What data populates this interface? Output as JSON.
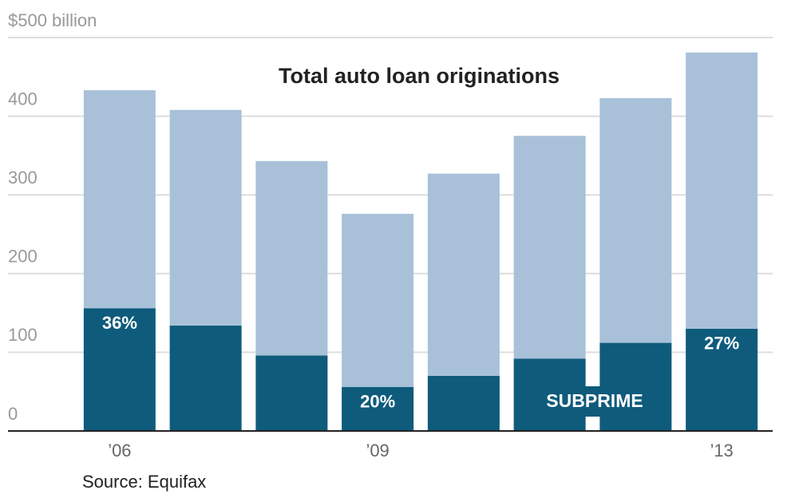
{
  "chart_data": {
    "type": "stacked-bar",
    "title": "Total auto loan originations",
    "source": "Source: Equifax",
    "categories": [
      "’06",
      null,
      null,
      "’09",
      null,
      null,
      null,
      "’13"
    ],
    "series": [
      {
        "name": "SUBPRIME",
        "color": "#0e5b7c",
        "values": [
          156,
          134,
          96,
          56,
          70,
          92,
          112,
          130
        ]
      },
      {
        "color": "#a8c1d9",
        "values": [
          277,
          274,
          247,
          220,
          257,
          283,
          311,
          351
        ]
      }
    ],
    "share_labels": [
      "36%",
      null,
      null,
      "20%",
      null,
      null,
      null,
      "27%"
    ],
    "ylim": [
      0,
      500
    ],
    "yticks": [
      0,
      100,
      200,
      300,
      400,
      {
        "value": 500,
        "label": "$500 billion"
      }
    ],
    "grid": true
  }
}
